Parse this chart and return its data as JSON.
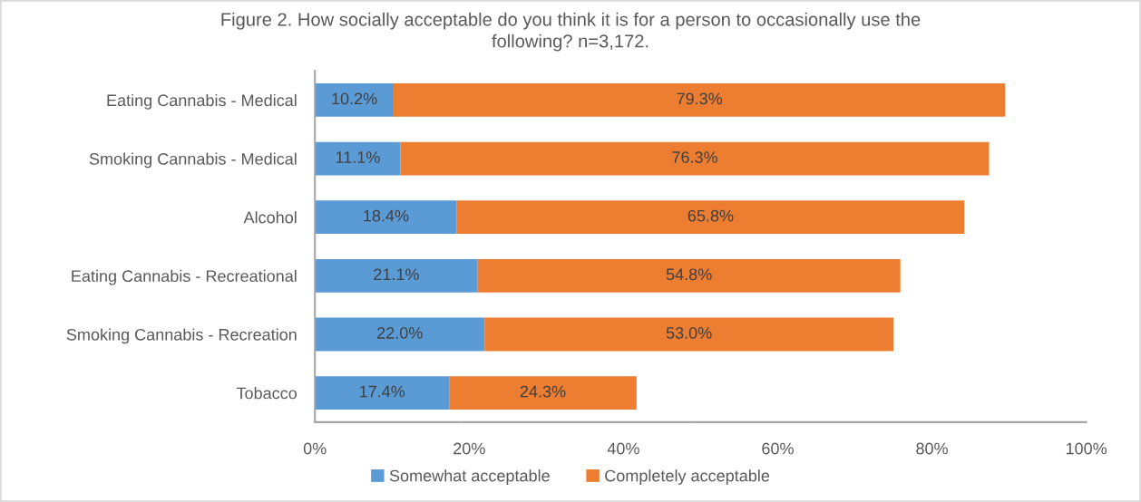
{
  "chart_data": {
    "type": "bar",
    "orientation": "horizontal",
    "stacked": true,
    "title": "Figure 2. How socially acceptable do you think it is for a person to occasionally use the\nfollowing? n=3,172.",
    "categories": [
      "Eating Cannabis - Medical",
      "Smoking Cannabis - Medical",
      "Alcohol",
      "Eating Cannabis - Recreational",
      "Smoking Cannabis - Recreation",
      "Tobacco"
    ],
    "series": [
      {
        "name": "Somewhat acceptable",
        "color": "#5b9bd5",
        "values": [
          10.2,
          11.1,
          18.4,
          21.1,
          22.0,
          17.4
        ],
        "value_labels": [
          "10.2%",
          "11.1%",
          "18.4%",
          "21.1%",
          "22.0%",
          "17.4%"
        ]
      },
      {
        "name": "Completely acceptable",
        "color": "#ed7d31",
        "values": [
          79.3,
          76.3,
          65.8,
          54.8,
          53.0,
          24.3
        ],
        "value_labels": [
          "79.3%",
          "76.3%",
          "65.8%",
          "54.8%",
          "53.0%",
          "24.3%"
        ]
      }
    ],
    "xlim": [
      0,
      100
    ],
    "xticks": [
      {
        "value": 0,
        "label": "0%"
      },
      {
        "value": 20,
        "label": "20%"
      },
      {
        "value": 40,
        "label": "40%"
      },
      {
        "value": 60,
        "label": "60%"
      },
      {
        "value": 80,
        "label": "80%"
      },
      {
        "value": 100,
        "label": "100%"
      }
    ],
    "grid": false,
    "legend": "bottom"
  }
}
